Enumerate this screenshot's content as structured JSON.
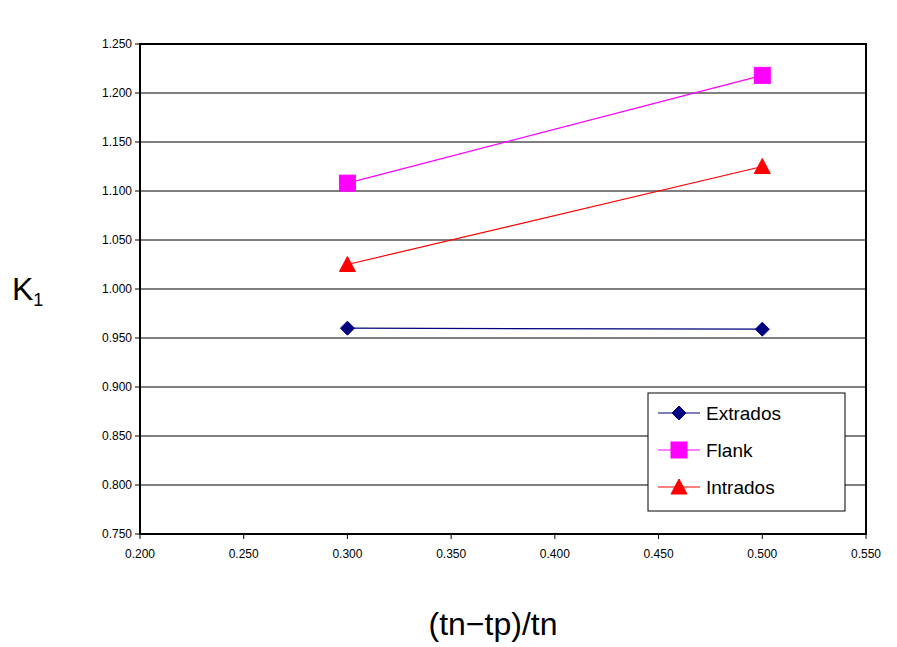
{
  "chart_data": {
    "type": "line",
    "x_label": "(tn−tp)/tn",
    "y_label": "K1",
    "x": [
      0.3,
      0.5
    ],
    "series": [
      {
        "name": "Extrados",
        "color": "#000080",
        "marker": "diamond",
        "values": [
          0.96,
          0.959
        ]
      },
      {
        "name": "Flank",
        "color": "#ff00ff",
        "marker": "square",
        "values": [
          1.108,
          1.218
        ]
      },
      {
        "name": "Intrados",
        "color": "#ff0000",
        "marker": "triangle",
        "values": [
          1.025,
          1.125
        ]
      }
    ],
    "xlim": [
      0.2,
      0.55
    ],
    "xticks": [
      {
        "value": 0.2,
        "label": "0.200"
      },
      {
        "value": 0.25,
        "label": "0.250"
      },
      {
        "value": 0.3,
        "label": "0.300"
      },
      {
        "value": 0.35,
        "label": "0.350"
      },
      {
        "value": 0.4,
        "label": "0.400"
      },
      {
        "value": 0.45,
        "label": "0.450"
      },
      {
        "value": 0.5,
        "label": "0.500"
      },
      {
        "value": 0.55,
        "label": "0.550"
      }
    ],
    "ylim": [
      0.75,
      1.25
    ],
    "yticks": [
      {
        "value": 0.75,
        "label": "0.750"
      },
      {
        "value": 0.8,
        "label": "0.800"
      },
      {
        "value": 0.85,
        "label": "0.850"
      },
      {
        "value": 0.9,
        "label": "0.900"
      },
      {
        "value": 0.95,
        "label": "0.950"
      },
      {
        "value": 1.0,
        "label": "1.000"
      },
      {
        "value": 1.05,
        "label": "1.050"
      },
      {
        "value": 1.1,
        "label": "1.100"
      },
      {
        "value": 1.15,
        "label": "1.150"
      },
      {
        "value": 1.2,
        "label": "1.200"
      },
      {
        "value": 1.25,
        "label": "1.250"
      }
    ],
    "grid": true,
    "legend": "lower right"
  }
}
